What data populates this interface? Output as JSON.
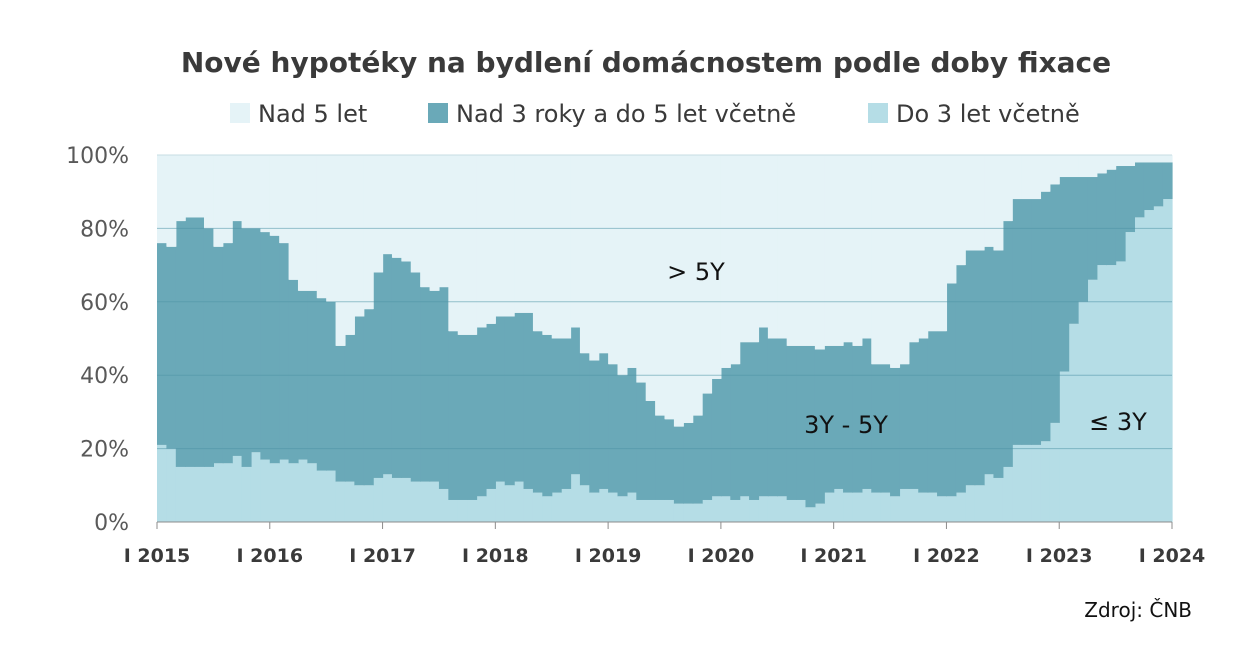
{
  "chart_data": {
    "type": "area",
    "stacked": true,
    "step": true,
    "title": "Nové hypotéky na bydlení domácnostem podle doby fixace",
    "xlabel": "",
    "ylabel": "",
    "ylim": [
      0,
      100
    ],
    "y_ticks": [
      "0%",
      "20%",
      "40%",
      "60%",
      "80%",
      "100%"
    ],
    "x_ticks": [
      "I 2015",
      "I 2016",
      "I 2017",
      "I 2018",
      "I 2019",
      "I 2020",
      "I 2021",
      "I 2022",
      "I 2023",
      "I 2024"
    ],
    "x_start": "2015-01",
    "frequency": "monthly",
    "grid": true,
    "legend_position": "top",
    "series": [
      {
        "name": "Do 3 let včetně",
        "color": "#b5dde6",
        "values": [
          21,
          20,
          15,
          15,
          15,
          15,
          16,
          16,
          18,
          15,
          19,
          17,
          16,
          17,
          16,
          17,
          16,
          14,
          14,
          11,
          11,
          10,
          10,
          12,
          13,
          12,
          12,
          11,
          11,
          11,
          9,
          6,
          6,
          6,
          7,
          9,
          11,
          10,
          11,
          9,
          8,
          7,
          8,
          9,
          13,
          10,
          8,
          9,
          8,
          7,
          8,
          6,
          6,
          6,
          6,
          5,
          5,
          5,
          6,
          7,
          7,
          6,
          7,
          6,
          7,
          7,
          7,
          6,
          6,
          4,
          5,
          8,
          9,
          8,
          8,
          9,
          8,
          8,
          7,
          9,
          9,
          8,
          8,
          7,
          7,
          8,
          10,
          10,
          13,
          12,
          15,
          21,
          21,
          21,
          22,
          27,
          41,
          54,
          60,
          66,
          70,
          70,
          71,
          79,
          83,
          85,
          86,
          88
        ]
      },
      {
        "name": "Nad 3 roky a do 5 let včetně",
        "color": "#6aa9b8",
        "values": [
          55,
          55,
          67,
          68,
          68,
          65,
          59,
          60,
          64,
          65,
          61,
          62,
          62,
          59,
          50,
          46,
          47,
          47,
          46,
          37,
          40,
          46,
          48,
          56,
          60,
          60,
          59,
          57,
          53,
          52,
          55,
          46,
          45,
          45,
          46,
          45,
          45,
          46,
          46,
          48,
          44,
          44,
          42,
          41,
          40,
          36,
          36,
          37,
          35,
          33,
          34,
          32,
          27,
          23,
          22,
          21,
          22,
          24,
          29,
          32,
          35,
          37,
          42,
          43,
          46,
          43,
          43,
          42,
          42,
          44,
          42,
          40,
          39,
          41,
          40,
          41,
          35,
          35,
          35,
          34,
          40,
          42,
          44,
          45,
          58,
          62,
          64,
          64,
          62,
          62,
          67,
          67,
          67,
          67,
          68,
          65,
          53,
          40,
          34,
          28,
          25,
          26,
          26,
          18,
          15,
          13,
          12,
          10
        ]
      },
      {
        "name": "Nad 5 let",
        "color": "#e5f3f7",
        "values": [
          24,
          25,
          18,
          17,
          17,
          20,
          25,
          24,
          18,
          20,
          20,
          21,
          22,
          24,
          34,
          37,
          37,
          39,
          40,
          52,
          49,
          44,
          42,
          32,
          27,
          28,
          29,
          32,
          36,
          37,
          36,
          48,
          49,
          49,
          47,
          46,
          44,
          44,
          43,
          43,
          48,
          49,
          50,
          50,
          47,
          54,
          56,
          54,
          57,
          60,
          58,
          62,
          67,
          71,
          72,
          74,
          73,
          71,
          65,
          61,
          58,
          57,
          51,
          51,
          47,
          50,
          50,
          52,
          52,
          52,
          53,
          52,
          52,
          51,
          52,
          50,
          57,
          57,
          58,
          57,
          51,
          50,
          48,
          48,
          35,
          30,
          26,
          26,
          25,
          26,
          18,
          12,
          12,
          12,
          10,
          8,
          6,
          6,
          6,
          6,
          5,
          4,
          3,
          3,
          2,
          2,
          2,
          2
        ]
      }
    ],
    "annotations": [
      {
        "text": "> 5Y"
      },
      {
        "text": "3Y - 5Y"
      },
      {
        "text": "≤ 3Y"
      }
    ],
    "source": "Zdroj: ČNB"
  },
  "legend": [
    {
      "label": "Nad 5 let",
      "color": "#e5f3f7"
    },
    {
      "label": "Nad 3 roky a do 5 let včetně",
      "color": "#6aa9b8"
    },
    {
      "label": "Do 3 let včetně",
      "color": "#b5dde6"
    }
  ]
}
